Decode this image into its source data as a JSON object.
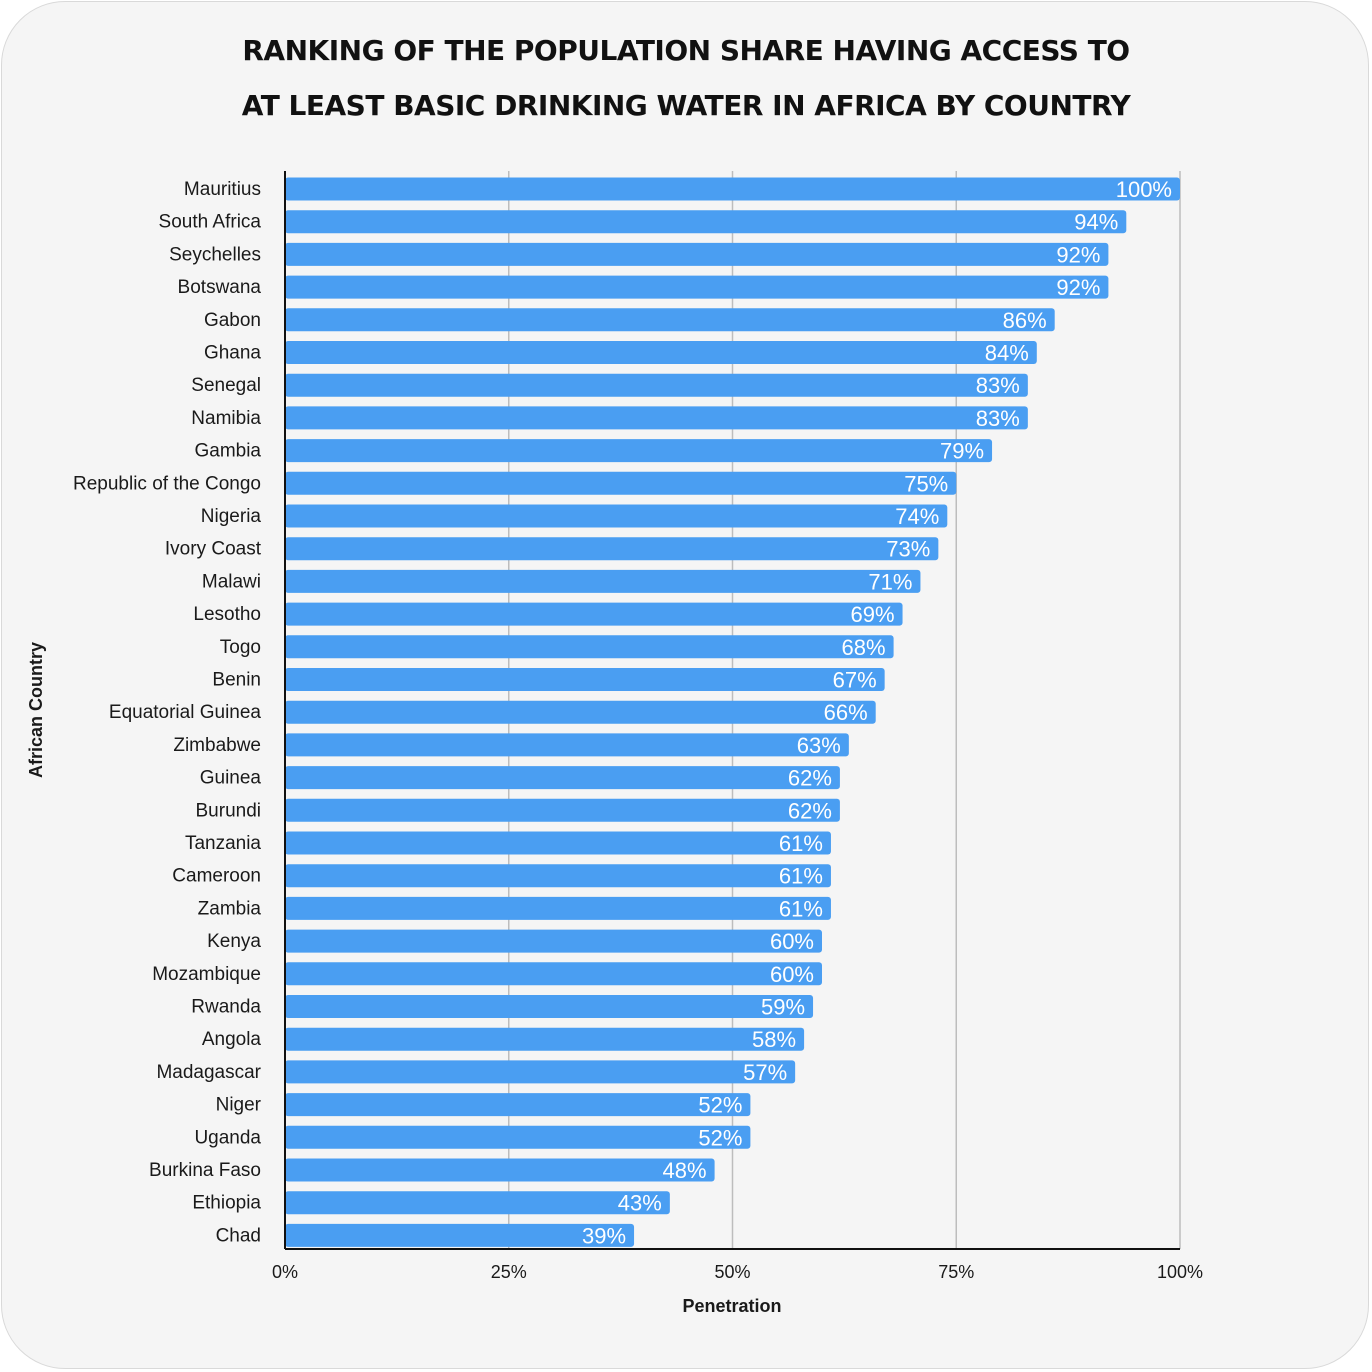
{
  "chart_data": {
    "type": "bar",
    "orientation": "horizontal",
    "title_lines": [
      "RANKING OF THE POPULATION SHARE HAVING ACCESS TO",
      "AT LEAST BASIC DRINKING WATER IN AFRICA BY COUNTRY"
    ],
    "xlabel": "Penetration",
    "ylabel": "African Country",
    "xlim": [
      0,
      100
    ],
    "xticks": [
      "0%",
      "25%",
      "50%",
      "75%",
      "100%"
    ],
    "grid": true,
    "bar_color": "#4a9ef2",
    "categories": [
      "Mauritius",
      "South Africa",
      "Seychelles",
      "Botswana",
      "Gabon",
      "Ghana",
      "Senegal",
      "Namibia",
      "Gambia",
      "Republic of the Congo",
      "Nigeria",
      "Ivory Coast",
      "Malawi",
      "Lesotho",
      "Togo",
      "Benin",
      "Equatorial Guinea",
      "Zimbabwe",
      "Guinea",
      "Burundi",
      "Tanzania",
      "Cameroon",
      "Zambia",
      "Kenya",
      "Mozambique",
      "Rwanda",
      "Angola",
      "Madagascar",
      "Niger",
      "Uganda",
      "Burkina Faso",
      "Ethiopia",
      "Chad"
    ],
    "values": [
      100,
      94,
      92,
      92,
      86,
      84,
      83,
      83,
      79,
      75,
      74,
      73,
      71,
      69,
      68,
      67,
      66,
      63,
      62,
      62,
      61,
      61,
      61,
      60,
      60,
      59,
      58,
      57,
      52,
      52,
      48,
      43,
      39
    ],
    "value_labels": [
      "100%",
      "94%",
      "92%",
      "92%",
      "86%",
      "84%",
      "83%",
      "83%",
      "79%",
      "75%",
      "74%",
      "73%",
      "71%",
      "69%",
      "68%",
      "67%",
      "66%",
      "63%",
      "62%",
      "62%",
      "61%",
      "61%",
      "61%",
      "60%",
      "60%",
      "59%",
      "58%",
      "57%",
      "52%",
      "52%",
      "48%",
      "43%",
      "39%"
    ]
  }
}
